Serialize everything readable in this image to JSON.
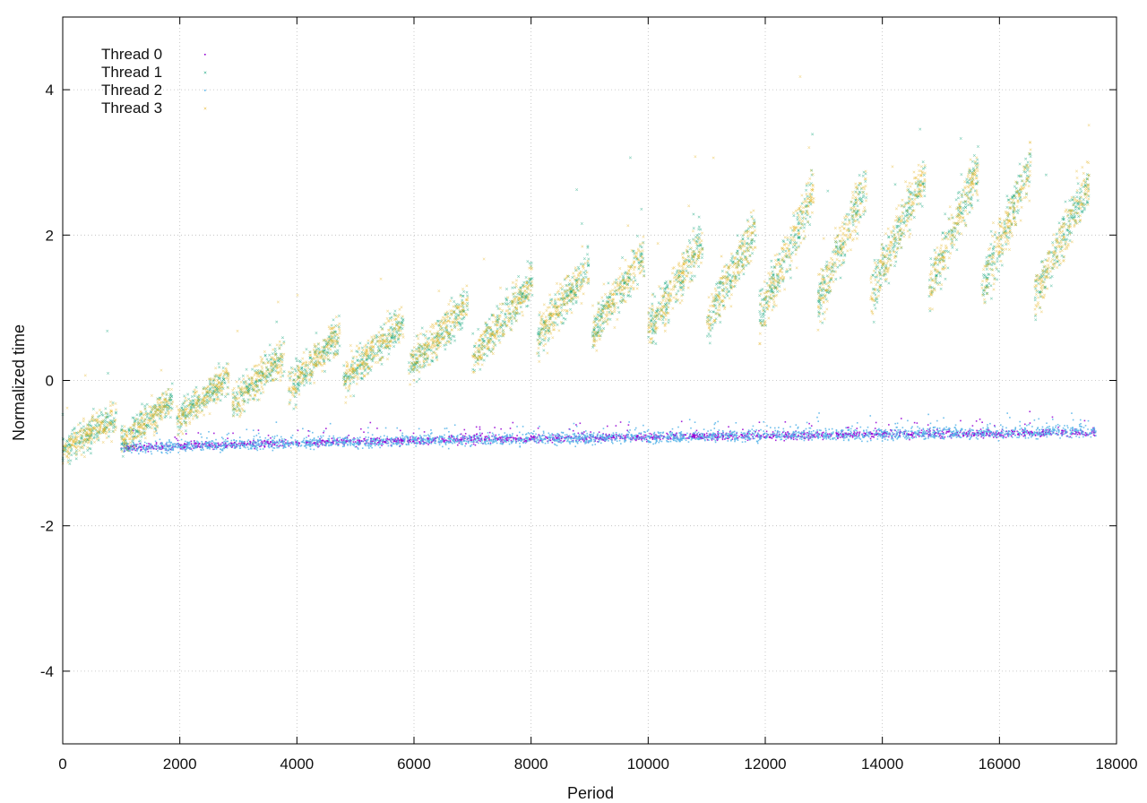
{
  "chart_data": {
    "type": "scatter",
    "title": "",
    "xlabel": "Period",
    "ylabel": "Normalized time",
    "xlim": [
      0,
      18000
    ],
    "ylim": [
      -5,
      5
    ],
    "x_ticks": [
      0,
      2000,
      4000,
      6000,
      8000,
      10000,
      12000,
      14000,
      16000,
      18000
    ],
    "y_ticks": [
      -4,
      -2,
      0,
      2,
      4
    ],
    "x_tick_labels": [
      "0",
      "2000",
      "4000",
      "6000",
      "8000",
      "10000",
      "12000",
      "14000",
      "16000",
      "18000"
    ],
    "y_tick_labels": [
      "-4",
      "-2",
      "0",
      "2",
      "4"
    ],
    "grid": true,
    "legend": "top-left",
    "series": [
      {
        "name": "Thread 0",
        "color": "#9400d3",
        "marker": "dot",
        "description_points": [
          [
            0,
            -1.02
          ],
          [
            1000,
            -0.93
          ],
          [
            4000,
            -0.86
          ],
          [
            8000,
            -0.8
          ],
          [
            12000,
            -0.76
          ],
          [
            16000,
            -0.73
          ],
          [
            17600,
            -0.72
          ]
        ]
      },
      {
        "name": "Thread 1",
        "color": "#009e73",
        "marker": "x",
        "teeth": [
          {
            "x0": 0,
            "x1": 980,
            "lo": -1.02,
            "hi": -0.45
          },
          {
            "x0": 1000,
            "x1": 1950,
            "lo": -0.95,
            "hi": -0.15
          },
          {
            "x0": 1950,
            "x1": 2900,
            "lo": -0.65,
            "hi": 0.15
          },
          {
            "x0": 2900,
            "x1": 3850,
            "lo": -0.45,
            "hi": 0.45
          },
          {
            "x0": 3850,
            "x1": 4800,
            "lo": -0.25,
            "hi": 0.75
          },
          {
            "x0": 4800,
            "x1": 5900,
            "lo": -0.15,
            "hi": 0.95
          },
          {
            "x0": 5900,
            "x1": 7000,
            "lo": 0.0,
            "hi": 1.2
          },
          {
            "x0": 7000,
            "x1": 8100,
            "lo": 0.1,
            "hi": 1.55
          },
          {
            "x0": 8100,
            "x1": 9050,
            "lo": 0.4,
            "hi": 1.75
          },
          {
            "x0": 9050,
            "x1": 10000,
            "lo": 0.5,
            "hi": 1.9
          },
          {
            "x0": 10000,
            "x1": 11000,
            "lo": 0.5,
            "hi": 2.1
          },
          {
            "x0": 11000,
            "x1": 11900,
            "lo": 0.6,
            "hi": 2.3
          },
          {
            "x0": 11900,
            "x1": 12900,
            "lo": 0.55,
            "hi": 2.9
          },
          {
            "x0": 12900,
            "x1": 13800,
            "lo": 0.8,
            "hi": 3.0
          },
          {
            "x0": 13800,
            "x1": 14800,
            "lo": 0.9,
            "hi": 3.1
          },
          {
            "x0": 14800,
            "x1": 15700,
            "lo": 1.0,
            "hi": 3.2
          },
          {
            "x0": 15700,
            "x1": 16600,
            "lo": 1.0,
            "hi": 3.2
          },
          {
            "x0": 16600,
            "x1": 17600,
            "lo": 0.85,
            "hi": 3.0
          }
        ]
      },
      {
        "name": "Thread 2",
        "color": "#56b4e9",
        "marker": "dot",
        "description_points": [
          [
            0,
            -1.02
          ],
          [
            1000,
            -0.93
          ],
          [
            4000,
            -0.86
          ],
          [
            8000,
            -0.8
          ],
          [
            12000,
            -0.76
          ],
          [
            16000,
            -0.72
          ],
          [
            17600,
            -0.7
          ]
        ]
      },
      {
        "name": "Thread 3",
        "color": "#e6b422",
        "marker": "x",
        "teeth_ref": "Thread 1"
      }
    ]
  }
}
